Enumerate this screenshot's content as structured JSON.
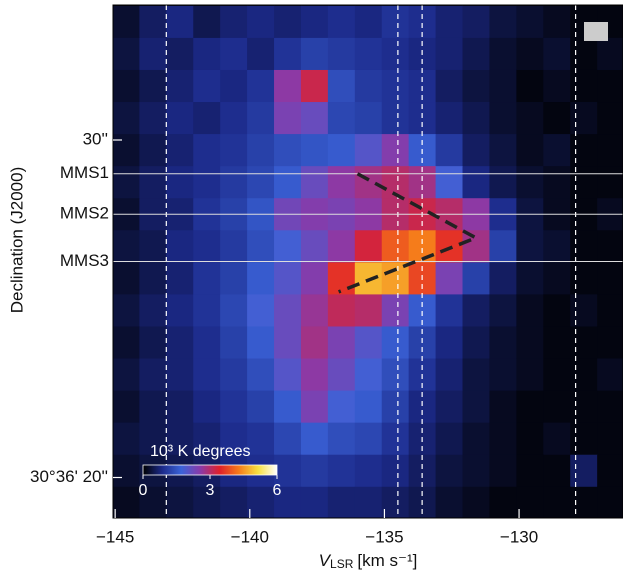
{
  "chart_data": {
    "type": "heatmap",
    "xlabel": {
      "symbol": "V",
      "subscript": "LSR",
      "unit": "[km s⁻¹]"
    },
    "ylabel": "Declination (J2000)",
    "xlim": [
      -145.08,
      -126.14
    ],
    "ylim": [
      18.8,
      34.0
    ],
    "xticks": [
      {
        "value": -145,
        "label": "−145"
      },
      {
        "value": -140,
        "label": "−140"
      },
      {
        "value": -135,
        "label": "−135"
      },
      {
        "value": -130,
        "label": "−130"
      }
    ],
    "yticks": [
      {
        "value": 30,
        "label": "30''"
      },
      {
        "value": 20,
        "label": "30°36' 20''"
      }
    ],
    "x": [
      -144.6,
      -143.6,
      -142.6,
      -141.6,
      -140.6,
      -139.6,
      -138.6,
      -137.6,
      -136.6,
      -135.6,
      -134.6,
      -133.6,
      -132.6,
      -131.6,
      -130.6,
      -129.6,
      -128.6,
      -127.6,
      -126.6
    ],
    "y": [
      33.5,
      32.55,
      31.6,
      30.65,
      29.7,
      28.75,
      27.8,
      26.85,
      25.9,
      24.95,
      24.0,
      23.05,
      22.1,
      21.15,
      20.2,
      19.25
    ],
    "values": [
      [
        0.3,
        0.6,
        0.8,
        0.5,
        0.7,
        0.8,
        0.7,
        0.8,
        0.9,
        0.8,
        1.0,
        0.9,
        0.7,
        0.6,
        0.4,
        0.3,
        0.2,
        0.1,
        0.1
      ],
      [
        0.4,
        0.7,
        0.6,
        0.8,
        0.9,
        0.7,
        1.0,
        1.2,
        1.1,
        1.0,
        0.9,
        0.8,
        0.7,
        0.5,
        0.3,
        0.2,
        0.3,
        0.1,
        0.2
      ],
      [
        0.3,
        0.5,
        0.7,
        0.9,
        0.8,
        1.0,
        2.6,
        3.2,
        1.4,
        1.1,
        1.0,
        0.9,
        0.6,
        0.4,
        0.3,
        0.1,
        0.2,
        0.1,
        0.1
      ],
      [
        0.4,
        0.6,
        0.8,
        0.7,
        0.9,
        1.1,
        2.4,
        2.2,
        1.3,
        1.2,
        1.0,
        0.9,
        0.7,
        0.5,
        0.3,
        0.2,
        0.1,
        0.2,
        0.1
      ],
      [
        0.3,
        0.5,
        0.7,
        0.9,
        1.0,
        1.2,
        1.4,
        1.5,
        1.6,
        2.0,
        2.5,
        1.6,
        1.1,
        0.6,
        0.4,
        0.2,
        0.3,
        0.1,
        0.1
      ],
      [
        0.4,
        0.6,
        0.8,
        0.9,
        1.1,
        1.3,
        1.6,
        2.2,
        2.6,
        2.8,
        3.0,
        2.8,
        1.8,
        0.8,
        0.5,
        0.3,
        0.2,
        0.1,
        0.1
      ],
      [
        0.3,
        0.6,
        0.7,
        1.0,
        1.2,
        1.5,
        2.3,
        2.5,
        2.4,
        2.6,
        3.0,
        3.2,
        3.0,
        2.6,
        0.9,
        0.4,
        0.2,
        0.1,
        0.2
      ],
      [
        0.4,
        0.5,
        0.8,
        0.9,
        1.1,
        1.4,
        1.8,
        2.2,
        2.6,
        3.3,
        4.0,
        4.3,
        3.6,
        2.8,
        1.2,
        0.4,
        0.3,
        0.1,
        0.1
      ],
      [
        0.3,
        0.5,
        0.7,
        1.0,
        1.2,
        1.6,
        2.0,
        2.5,
        3.6,
        4.8,
        4.6,
        3.8,
        2.4,
        1.2,
        0.6,
        0.3,
        0.2,
        0.1,
        0.1
      ],
      [
        0.4,
        0.6,
        0.8,
        1.0,
        1.3,
        1.8,
        2.2,
        2.7,
        3.1,
        3.0,
        2.4,
        1.6,
        1.0,
        0.6,
        0.4,
        0.2,
        0.1,
        0.2,
        0.1
      ],
      [
        0.3,
        0.5,
        0.7,
        0.9,
        1.2,
        1.6,
        2.2,
        2.8,
        2.4,
        2.0,
        1.6,
        1.2,
        0.8,
        0.5,
        0.3,
        0.2,
        0.1,
        0.1,
        0.1
      ],
      [
        0.4,
        0.6,
        0.7,
        0.9,
        1.1,
        1.4,
        2.0,
        2.6,
        2.2,
        1.8,
        1.4,
        1.0,
        0.7,
        0.4,
        0.3,
        0.2,
        0.1,
        0.1,
        0.2
      ],
      [
        0.3,
        0.5,
        0.6,
        0.8,
        1.0,
        1.2,
        1.6,
        2.4,
        1.8,
        1.6,
        1.2,
        0.8,
        0.6,
        0.4,
        0.2,
        0.1,
        0.1,
        0.1,
        0.1
      ],
      [
        0.4,
        0.5,
        0.6,
        0.7,
        0.9,
        1.0,
        1.3,
        1.6,
        1.4,
        1.3,
        1.0,
        0.7,
        0.5,
        0.3,
        0.2,
        0.1,
        0.2,
        0.1,
        0.1
      ],
      [
        0.3,
        0.4,
        0.5,
        0.6,
        0.8,
        0.9,
        1.0,
        1.1,
        1.0,
        0.9,
        0.8,
        0.6,
        0.4,
        0.3,
        0.2,
        0.1,
        0.1,
        0.6,
        0.1
      ],
      [
        0.2,
        0.3,
        0.4,
        0.5,
        0.6,
        0.7,
        0.8,
        0.8,
        0.7,
        0.7,
        0.6,
        0.5,
        0.3,
        0.2,
        0.1,
        0.1,
        0.1,
        0.1,
        0.1
      ]
    ],
    "hlines": [
      {
        "value": 29.0,
        "label": "MMS1"
      },
      {
        "value": 27.8,
        "label": "MMS2"
      },
      {
        "value": 26.4,
        "label": "MMS3"
      }
    ],
    "vlines": [
      -143.1,
      -134.5,
      -133.6,
      -127.9
    ],
    "path": {
      "x": [
        -136.0,
        -131.6,
        -136.7
      ],
      "y": [
        29.0,
        27.1,
        25.5
      ]
    },
    "colorbar": {
      "label": "10³ K degrees",
      "lim": [
        0,
        6
      ],
      "ticks": [
        0,
        3,
        6
      ],
      "colors": [
        "#000000",
        "#1c2a8a",
        "#3b63d8",
        "#8a3aa8",
        "#e0202a",
        "#f57a1a",
        "#f8e040",
        "#ffffff"
      ]
    }
  }
}
